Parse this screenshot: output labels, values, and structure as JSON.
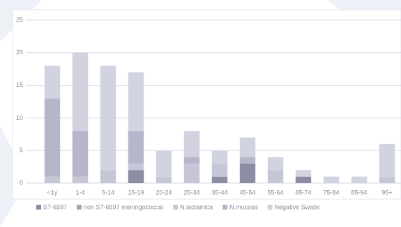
{
  "chart_data": {
    "type": "stacked_bar",
    "categories": [
      "<1y",
      "1-4",
      "5-14",
      "15-19",
      "20-24",
      "25-34",
      "35-44",
      "45-54",
      "55-64",
      "65-74",
      "75-84",
      "85-94",
      "95+"
    ],
    "series": [
      {
        "name": "ST-6597",
        "color": "#8c8da2",
        "values": [
          0,
          0,
          0,
          2,
          0,
          0,
          1,
          3,
          0,
          1,
          0,
          0,
          0
        ]
      },
      {
        "name": "non ST-6597 meningococcal",
        "color": "#a4a5b9",
        "values": [
          0,
          0,
          0,
          0,
          0,
          0,
          0,
          0,
          0,
          0,
          0,
          0,
          0
        ]
      },
      {
        "name": "N.lactamica",
        "color": "#c6c7d6",
        "values": [
          1,
          1,
          2,
          1,
          1,
          3,
          2,
          0,
          2,
          0,
          0,
          0,
          1
        ]
      },
      {
        "name": "N.mucosa",
        "color": "#b5b6c9",
        "values": [
          12,
          7,
          0,
          5,
          0,
          1,
          0,
          1,
          0,
          0,
          0,
          0,
          0
        ]
      },
      {
        "name": "Negative Swabs",
        "color": "#d2d3e0",
        "values": [
          5,
          12,
          16,
          9,
          4,
          4,
          2,
          3,
          2,
          1,
          1,
          1,
          5
        ]
      }
    ],
    "ylim": [
      0,
      25
    ],
    "yticks": [
      0,
      5,
      10,
      15,
      20,
      25
    ],
    "grid": true
  }
}
